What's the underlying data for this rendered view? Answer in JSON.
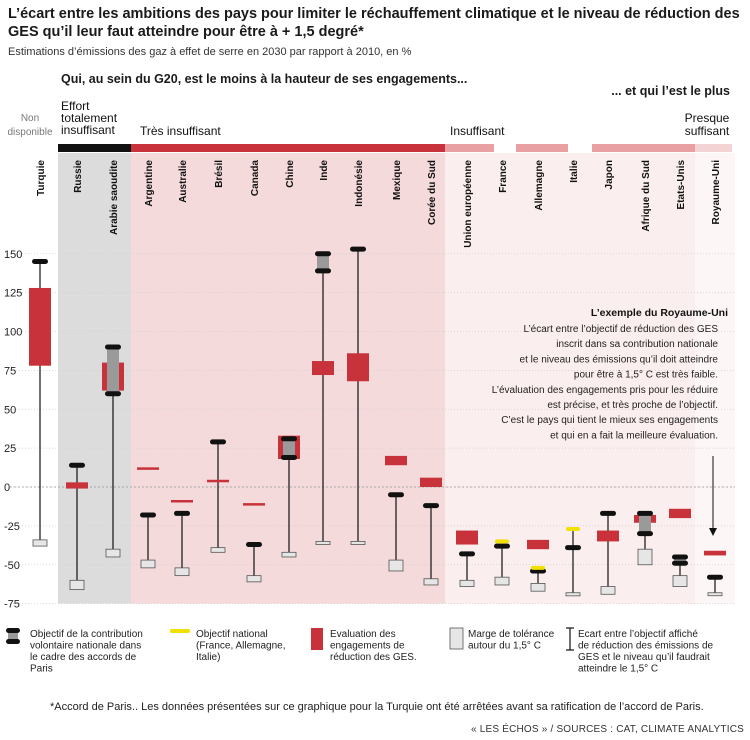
{
  "title": "L’écart entre les ambitions des pays pour limiter le réchauffement climatique et le niveau de réduction des GES qu’il leur faut atteindre pour être à + 1,5 degré*",
  "subtitle": "Estimations d’émissions des gaz à effet de serre en 2030 par rapport à 2010, en %",
  "question_left": "Qui, au sein du G20, est le moins à la hauteur de ses engagements...",
  "question_right": "... et qui l’est le plus",
  "footnote": "*Accord de Paris.. Les données présentées sur ce graphique pour la Turquie ont été arrêtées avant sa ratification de l’accord de Paris.",
  "source": "« LES ÉCHOS » / SOURCES : CAT, CLIMATE ANALYTICS",
  "colors": {
    "red": "#c8323a",
    "grey_zone": "#dcdcdc",
    "pink_zone": "#f5dadb",
    "light_zone": "#fbeeee",
    "national_target": "#f1e000",
    "black": "#111111"
  },
  "categories": [
    {
      "label": "Non disponible",
      "color": "#ffffff"
    },
    {
      "label": "Effort totalement insuffisant",
      "color": "#111111"
    },
    {
      "label": "Très insuffisant",
      "color": "#c8323a"
    },
    {
      "label": "Insuffisant",
      "color": "#e8a0a3"
    },
    {
      "label": "Presque suffisant",
      "color": "#f3d3d4"
    }
  ],
  "annotation": {
    "title": "L’exemple du Royaume-Uni",
    "lines": [
      "L’écart entre l’objectif de réduction des GES",
      "inscrit dans sa contribution nationale",
      "et le niveau des émissions qu’il doit atteindre",
      "pour être à 1,5° C est très faible.",
      "L’évaluation des engagements pris pour les réduire",
      "est précise, et très proche de l’objectif.",
      "C’est le pays qui tient le mieux ses engagements",
      "et qui en a fait la meilleure évaluation."
    ]
  },
  "legend": {
    "ndc": "Objectif de la contribution volontaire nationale dans le cadre des accords de Paris",
    "national": "Objectif national (France, Allemagne, Italie)",
    "evaluation": "Evaluation des engagements de réduction des GES.",
    "tolerance": "Marge de tolérance autour du 1,5° C",
    "gap": "Ecart entre l’objectif affiché de réduction des émissions de GES et le niveau qu’il faudrait atteindre le 1,5° C"
  },
  "chart_data": {
    "type": "range",
    "ylabel": "",
    "ylim": [
      -75,
      150
    ],
    "yticks": [
      150,
      125,
      100,
      75,
      50,
      25,
      0,
      -25,
      -50,
      -75
    ],
    "countries": [
      {
        "name": "Turquie",
        "group": "Non disponible",
        "ndc": [
          145
        ],
        "eval": [
          78,
          128
        ],
        "tol": [
          -38,
          -34
        ],
        "gap": [
          -34,
          145
        ]
      },
      {
        "name": "Russie",
        "group": "Effort totalement insuffisant",
        "ndc": [
          14
        ],
        "eval": [
          -1,
          3
        ],
        "tol": [
          -66,
          -60
        ],
        "gap": [
          -60,
          14
        ]
      },
      {
        "name": "Arabie saoudite",
        "group": "Effort totalement insuffisant",
        "ndc": [
          90,
          60
        ],
        "eval": [
          62,
          80
        ],
        "tol": [
          -45,
          -40
        ],
        "gap": [
          -40,
          90
        ]
      },
      {
        "name": "Argentine",
        "group": "Très insuffisant",
        "ndc": [
          -18
        ],
        "eval": [
          12
        ],
        "tol": [
          -52,
          -47
        ],
        "gap": [
          -47,
          -18
        ]
      },
      {
        "name": "Australie",
        "group": "Très insuffisant",
        "ndc": [
          -17
        ],
        "eval": [
          -9
        ],
        "tol": [
          -57,
          -52
        ],
        "gap": [
          -52,
          -17
        ]
      },
      {
        "name": "Brésil",
        "group": "Très insuffisant",
        "ndc": [
          29
        ],
        "eval": [
          4
        ],
        "tol": [
          -42,
          -39
        ],
        "gap": [
          -39,
          29
        ]
      },
      {
        "name": "Canada",
        "group": "Très insuffisant",
        "ndc": [
          -37
        ],
        "eval": [
          -11
        ],
        "tol": [
          -61,
          -57
        ],
        "gap": [
          -57,
          -37
        ]
      },
      {
        "name": "Chine",
        "group": "Très insuffisant",
        "ndc": [
          31,
          19
        ],
        "eval": [
          18,
          33
        ],
        "tol": [
          -45,
          -42
        ],
        "gap": [
          -42,
          31
        ]
      },
      {
        "name": "Inde",
        "group": "Très insuffisant",
        "ndc": [
          150,
          139
        ],
        "eval": [
          72,
          81
        ],
        "tol": [
          -37,
          -35
        ],
        "gap": [
          -35,
          150
        ]
      },
      {
        "name": "Indonésie",
        "group": "Très insuffisant",
        "ndc": [
          153
        ],
        "eval": [
          68,
          86
        ],
        "tol": [
          -37,
          -35
        ],
        "gap": [
          -35,
          153
        ]
      },
      {
        "name": "Mexique",
        "group": "Très insuffisant",
        "ndc": [
          -5
        ],
        "eval": [
          14,
          20
        ],
        "tol": [
          -54,
          -47
        ],
        "gap": [
          -47,
          -5
        ]
      },
      {
        "name": "Corée du Sud",
        "group": "Très insuffisant",
        "ndc": [
          -12
        ],
        "eval": [
          0,
          6
        ],
        "tol": [
          -63,
          -59
        ],
        "gap": [
          -59,
          -12
        ]
      },
      {
        "name": "Union européenne",
        "group": "Insuffisant",
        "ndc": [
          -43
        ],
        "eval": [
          -37,
          -28
        ],
        "tol": [
          -64,
          -60
        ],
        "gap": [
          -60,
          -43
        ]
      },
      {
        "name": "France",
        "group": "Insuffisant",
        "ndc": [
          -38
        ],
        "national": [
          -35
        ],
        "tol": [
          -63,
          -58
        ],
        "gap": [
          -58,
          -38
        ]
      },
      {
        "name": "Allemagne",
        "group": "Insuffisant",
        "ndc": [
          -54
        ],
        "national": [
          -52
        ],
        "eval": [
          -40,
          -34
        ],
        "tol": [
          -67,
          -62
        ],
        "gap": [
          -62,
          -54
        ]
      },
      {
        "name": "Italie",
        "group": "Insuffisant",
        "ndc": [
          -39
        ],
        "national": [
          -27
        ],
        "tol": [
          -70,
          -68
        ],
        "gap": [
          -68,
          -27
        ]
      },
      {
        "name": "Japon",
        "group": "Insuffisant",
        "ndc": [
          -17
        ],
        "eval": [
          -35,
          -28
        ],
        "tol": [
          -69,
          -64
        ],
        "gap": [
          -64,
          -17
        ]
      },
      {
        "name": "Afrique du Sud",
        "group": "Insuffisant",
        "ndc": [
          -17,
          -30
        ],
        "eval": [
          -23,
          -18
        ],
        "tol": [
          -50,
          -40
        ],
        "gap": [
          -40,
          -17
        ]
      },
      {
        "name": "Etats-Unis",
        "group": "Insuffisant",
        "ndc": [
          -45,
          -49
        ],
        "eval": [
          -20,
          -14
        ],
        "tol": [
          -64,
          -57
        ],
        "gap": [
          -57,
          -45
        ]
      },
      {
        "name": "Royaume-Uni",
        "group": "Presque suffisant",
        "ndc": [
          -58
        ],
        "eval": [
          -44,
          -41
        ],
        "tol": [
          -69,
          -68
        ],
        "gap": [
          -68,
          -58
        ]
      }
    ]
  }
}
